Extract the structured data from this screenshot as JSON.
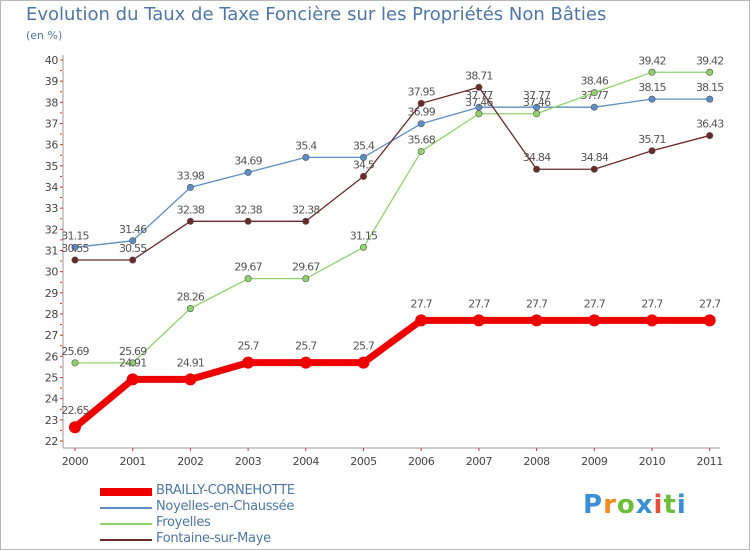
{
  "title": "Evolution du Taux de Taxe Foncière sur les Propriétés Non Bâties",
  "subtitle": "(en %)",
  "logo": {
    "letters": [
      "P",
      "r",
      "o",
      "x",
      "i",
      "t",
      "i"
    ],
    "colors": [
      "#3a8fd6",
      "#f08c1c",
      "#6cbf3a",
      "#3a8fd6",
      "#e84c3d",
      "#6cbf3a",
      "#3a8fd6"
    ]
  },
  "chart_data": {
    "type": "line",
    "title": "Evolution du Taux de Taxe Foncière sur les Propriétés Non Bâties",
    "ylabel": "(en %)",
    "xlabel": "",
    "ylim": [
      22,
      40
    ],
    "yticks": [
      22,
      23,
      24,
      25,
      26,
      27,
      28,
      29,
      30,
      31,
      32,
      33,
      34,
      35,
      36,
      37,
      38,
      39,
      40
    ],
    "categories": [
      "2000",
      "2001",
      "2002",
      "2003",
      "2004",
      "2005",
      "2006",
      "2007",
      "2008",
      "2009",
      "2010",
      "2011"
    ],
    "series": [
      {
        "name": "Noyelles-en-Chaussée",
        "color": "#5b8ec4",
        "values": [
          31.15,
          31.46,
          33.98,
          34.69,
          35.4,
          35.4,
          36.99,
          37.77,
          37.77,
          37.77,
          38.15,
          38.15
        ],
        "labels": [
          "31.15",
          "31.46",
          "33.98",
          "34.69",
          "35.4",
          "35.4",
          "36.99",
          "37.77",
          "37.77",
          "37.77",
          "38.15",
          "38.15"
        ]
      },
      {
        "name": "Froyelles",
        "color": "#8fd46a",
        "values": [
          25.69,
          25.69,
          28.26,
          29.67,
          29.67,
          31.15,
          35.68,
          37.46,
          37.46,
          38.46,
          39.42,
          39.42
        ],
        "labels": [
          "25.69",
          "25.69",
          "28.26",
          "29.67",
          "29.67",
          "31.15",
          "35.68",
          "37.46",
          "37.46",
          "38.46",
          "39.42",
          "39.42"
        ]
      },
      {
        "name": "Fontaine-sur-Maye",
        "color": "#6b2a2a",
        "values": [
          30.55,
          30.55,
          32.38,
          32.38,
          32.38,
          34.5,
          37.95,
          38.71,
          34.84,
          34.84,
          35.71,
          36.43
        ],
        "labels": [
          "30.55",
          "30.55",
          "32.38",
          "32.38",
          "32.38",
          "34.5",
          "37.95",
          "38.71",
          "34.84",
          "34.84",
          "35.71",
          "36.43"
        ]
      },
      {
        "name": "BRAILLY-CORNEHOTTE",
        "color": "#ee0000",
        "values": [
          22.65,
          24.91,
          24.91,
          25.7,
          25.7,
          25.7,
          27.7,
          27.7,
          27.7,
          27.7,
          27.7,
          27.7
        ],
        "labels": [
          "22.65",
          "24.91",
          "24.91",
          "25.7",
          "25.7",
          "25.7",
          "27.7",
          "27.7",
          "27.7",
          "27.7",
          "27.7",
          "27.7"
        ]
      }
    ],
    "legend": [
      "BRAILLY-CORNEHOTTE",
      "Noyelles-en-Chaussée",
      "Froyelles",
      "Fontaine-sur-Maye"
    ],
    "legend_position": "bottom-left",
    "grid": false
  }
}
